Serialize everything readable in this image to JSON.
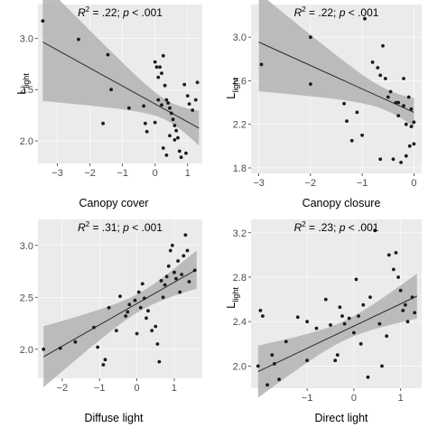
{
  "chart_data": [
    {
      "type": "scatter",
      "panel": "canopy-cover",
      "xlabel": "Canopy cover",
      "ylabel": {
        "main": "L",
        "sub": "light"
      },
      "annotation": {
        "r2_prefix": "R",
        "r2_sup": "2",
        "r2_value": " = .22; ",
        "p_symbol": "p",
        "p_value": " < .001"
      },
      "xlim": [
        -3.6,
        1.45
      ],
      "ylim": [
        1.78,
        3.33
      ],
      "xticks": [
        -3,
        -2,
        -1,
        0,
        1
      ],
      "xtick_labels": [
        "−3",
        "−2",
        "−1",
        "0",
        "1"
      ],
      "yticks": [
        2.0,
        2.5,
        3.0
      ],
      "ytick_labels": [
        "2.0",
        "2.5",
        "3.0"
      ],
      "fit": {
        "intercept": 2.36,
        "slope": -0.175,
        "x_range": [
          -3.45,
          1.35
        ],
        "se_at_mean": 0.05,
        "x_mean": 0.4,
        "se_slope": 0.075
      },
      "points": [
        [
          -3.45,
          3.17
        ],
        [
          -2.35,
          2.99
        ],
        [
          -1.45,
          2.84
        ],
        [
          -1.35,
          2.5
        ],
        [
          -1.6,
          2.17
        ],
        [
          -0.8,
          2.32
        ],
        [
          -0.35,
          2.34
        ],
        [
          -0.3,
          2.17
        ],
        [
          -0.25,
          2.09
        ],
        [
          0.0,
          2.77
        ],
        [
          0.05,
          2.72
        ],
        [
          0.1,
          2.62
        ],
        [
          0.15,
          2.72
        ],
        [
          0.2,
          2.66
        ],
        [
          0.25,
          2.83
        ],
        [
          0.3,
          2.54
        ],
        [
          0.35,
          2.4
        ],
        [
          0.4,
          2.37
        ],
        [
          0.45,
          2.32
        ],
        [
          0.5,
          2.27
        ],
        [
          0.55,
          2.21
        ],
        [
          0.6,
          2.15
        ],
        [
          0.65,
          2.1
        ],
        [
          0.7,
          2.03
        ],
        [
          0.75,
          1.9
        ],
        [
          0.8,
          1.84
        ],
        [
          0.35,
          1.86
        ],
        [
          0.25,
          1.93
        ],
        [
          0.1,
          2.4
        ],
        [
          0.2,
          2.35
        ],
        [
          0.0,
          2.18
        ],
        [
          0.9,
          2.55
        ],
        [
          1.0,
          2.44
        ],
        [
          1.05,
          2.36
        ],
        [
          1.15,
          2.3
        ],
        [
          1.25,
          2.4
        ],
        [
          1.3,
          2.57
        ],
        [
          0.95,
          1.88
        ],
        [
          0.6,
          2.01
        ],
        [
          0.45,
          2.05
        ]
      ]
    },
    {
      "type": "scatter",
      "panel": "canopy-closure",
      "xlabel": "Canopy closure",
      "ylabel": {
        "main": "L",
        "sub": "light"
      },
      "annotation": {
        "r2_prefix": "R",
        "r2_sup": "2",
        "r2_value": " = .22; ",
        "p_symbol": "p",
        "p_value": " < .001"
      },
      "xlim": [
        -3.15,
        0.15
      ],
      "ylim": [
        1.75,
        3.3
      ],
      "xticks": [
        -3,
        -2,
        -1,
        0
      ],
      "xtick_labels": [
        "−3",
        "−2",
        "−1",
        "0"
      ],
      "yticks": [
        1.8,
        2.2,
        2.6,
        3.0
      ],
      "ytick_labels": [
        "1.8",
        "2.2",
        "2.6",
        "3.0"
      ],
      "fit": {
        "intercept": 2.31,
        "slope": -0.215,
        "x_range": [
          -3.0,
          0.0
        ],
        "se_at_mean": 0.05,
        "x_mean": -0.5,
        "se_slope": 0.09
      },
      "points": [
        [
          -2.95,
          2.75
        ],
        [
          -2.0,
          3.0
        ],
        [
          -2.0,
          2.57
        ],
        [
          -1.35,
          2.39
        ],
        [
          -1.3,
          2.23
        ],
        [
          -1.2,
          2.05
        ],
        [
          -1.1,
          2.31
        ],
        [
          -1.0,
          2.1
        ],
        [
          -0.95,
          3.17
        ],
        [
          -0.8,
          2.77
        ],
        [
          -0.7,
          2.72
        ],
        [
          -0.65,
          2.65
        ],
        [
          -0.6,
          2.92
        ],
        [
          -0.55,
          2.62
        ],
        [
          -0.5,
          2.45
        ],
        [
          -0.45,
          2.5
        ],
        [
          -0.4,
          1.88
        ],
        [
          -0.35,
          2.4
        ],
        [
          -0.3,
          2.28
        ],
        [
          -0.25,
          1.85
        ],
        [
          -0.2,
          2.37
        ],
        [
          -0.15,
          2.2
        ],
        [
          -0.1,
          2.45
        ],
        [
          -0.05,
          2.34
        ],
        [
          0.0,
          2.22
        ],
        [
          0.0,
          2.02
        ],
        [
          -0.08,
          2.0
        ],
        [
          -0.2,
          2.62
        ],
        [
          -0.15,
          1.91
        ],
        [
          -0.65,
          1.88
        ],
        [
          -0.3,
          2.4
        ],
        [
          -0.05,
          2.18
        ]
      ]
    },
    {
      "type": "scatter",
      "panel": "diffuse-light",
      "xlabel": "Diffuse light",
      "ylabel": {
        "main": "",
        "sub": ""
      },
      "annotation": {
        "r2_prefix": "R",
        "r2_sup": "2",
        "r2_value": " = .31; ",
        "p_symbol": "p",
        "p_value": " < .001"
      },
      "xlim": [
        -2.65,
        1.75
      ],
      "ylim": [
        1.72,
        3.25
      ],
      "xticks": [
        -2,
        -1,
        0,
        1
      ],
      "xtick_labels": [
        "−2",
        "−1",
        "0",
        "1"
      ],
      "yticks": [
        2.0,
        2.5,
        3.0
      ],
      "ytick_labels": [
        "2.0",
        "2.5",
        "3.0"
      ],
      "fit": {
        "intercept": 2.44,
        "slope": 0.205,
        "x_range": [
          -2.5,
          1.6
        ],
        "se_at_mean": 0.045,
        "x_mean": 0.1,
        "se_slope": 0.055
      },
      "points": [
        [
          -2.5,
          2.0
        ],
        [
          -2.05,
          2.01
        ],
        [
          -1.65,
          2.07
        ],
        [
          -1.15,
          2.21
        ],
        [
          -1.05,
          2.02
        ],
        [
          -0.9,
          1.85
        ],
        [
          -0.85,
          1.9
        ],
        [
          -0.75,
          2.4
        ],
        [
          -0.55,
          2.18
        ],
        [
          -0.3,
          2.32
        ],
        [
          -0.25,
          2.36
        ],
        [
          -0.2,
          2.43
        ],
        [
          -0.05,
          2.47
        ],
        [
          0.05,
          2.55
        ],
        [
          0.1,
          2.4
        ],
        [
          0.15,
          2.63
        ],
        [
          0.2,
          2.49
        ],
        [
          0.25,
          2.3
        ],
        [
          0.3,
          2.37
        ],
        [
          0.4,
          2.18
        ],
        [
          0.5,
          2.22
        ],
        [
          0.55,
          2.05
        ],
        [
          0.6,
          1.88
        ],
        [
          0.65,
          2.66
        ],
        [
          0.7,
          2.5
        ],
        [
          0.75,
          2.62
        ],
        [
          0.8,
          2.7
        ],
        [
          0.85,
          2.8
        ],
        [
          0.9,
          2.95
        ],
        [
          0.95,
          3.0
        ],
        [
          1.0,
          2.74
        ],
        [
          1.05,
          2.68
        ],
        [
          1.1,
          2.85
        ],
        [
          1.15,
          2.55
        ],
        [
          1.2,
          2.72
        ],
        [
          1.25,
          2.9
        ],
        [
          1.3,
          3.1
        ],
        [
          1.35,
          2.95
        ],
        [
          1.4,
          2.65
        ],
        [
          1.55,
          2.76
        ],
        [
          -0.45,
          2.51
        ],
        [
          0.0,
          2.15
        ]
      ]
    },
    {
      "type": "scatter",
      "panel": "direct-light",
      "xlabel": "Direct light",
      "ylabel": {
        "main": "L",
        "sub": "light"
      },
      "annotation": {
        "r2_prefix": "R",
        "r2_sup": "2",
        "r2_value": " = .23; ",
        "p_symbol": "p",
        "p_value": " < .001"
      },
      "xlim": [
        -2.2,
        1.45
      ],
      "ylim": [
        1.8,
        3.32
      ],
      "xticks": [
        -1,
        0,
        1
      ],
      "xtick_labels": [
        "−1",
        "0",
        "1"
      ],
      "yticks": [
        2.0,
        2.4,
        2.8,
        3.2
      ],
      "ytick_labels": [
        "2.0",
        "2.4",
        "2.8",
        "3.2"
      ],
      "fit": {
        "intercept": 2.36,
        "slope": 0.2,
        "x_range": [
          -2.05,
          1.35
        ],
        "se_at_mean": 0.045,
        "x_mean": -0.2,
        "se_slope": 0.06
      },
      "points": [
        [
          -2.05,
          2.0
        ],
        [
          -2.0,
          2.5
        ],
        [
          -1.95,
          2.45
        ],
        [
          -1.85,
          1.83
        ],
        [
          -1.75,
          2.1
        ],
        [
          -1.7,
          2.02
        ],
        [
          -1.6,
          1.88
        ],
        [
          -1.45,
          2.22
        ],
        [
          -1.2,
          2.44
        ],
        [
          -1.0,
          2.4
        ],
        [
          -0.8,
          2.34
        ],
        [
          -0.6,
          2.6
        ],
        [
          -0.5,
          2.37
        ],
        [
          -0.4,
          2.05
        ],
        [
          -0.3,
          2.53
        ],
        [
          -0.25,
          2.45
        ],
        [
          -0.2,
          2.38
        ],
        [
          -0.1,
          2.43
        ],
        [
          0.0,
          2.3
        ],
        [
          0.05,
          2.78
        ],
        [
          0.1,
          2.45
        ],
        [
          0.2,
          2.55
        ],
        [
          0.3,
          1.9
        ],
        [
          0.35,
          2.62
        ],
        [
          0.45,
          3.22
        ],
        [
          0.55,
          2.38
        ],
        [
          0.6,
          2.0
        ],
        [
          0.7,
          2.27
        ],
        [
          0.75,
          3.0
        ],
        [
          0.85,
          2.87
        ],
        [
          0.9,
          3.02
        ],
        [
          0.95,
          2.8
        ],
        [
          1.0,
          2.68
        ],
        [
          1.05,
          2.5
        ],
        [
          1.1,
          2.55
        ],
        [
          1.15,
          2.4
        ],
        [
          1.25,
          2.62
        ],
        [
          1.3,
          2.48
        ],
        [
          -0.35,
          2.1
        ],
        [
          0.15,
          2.2
        ],
        [
          -1.0,
          2.05
        ]
      ]
    }
  ]
}
